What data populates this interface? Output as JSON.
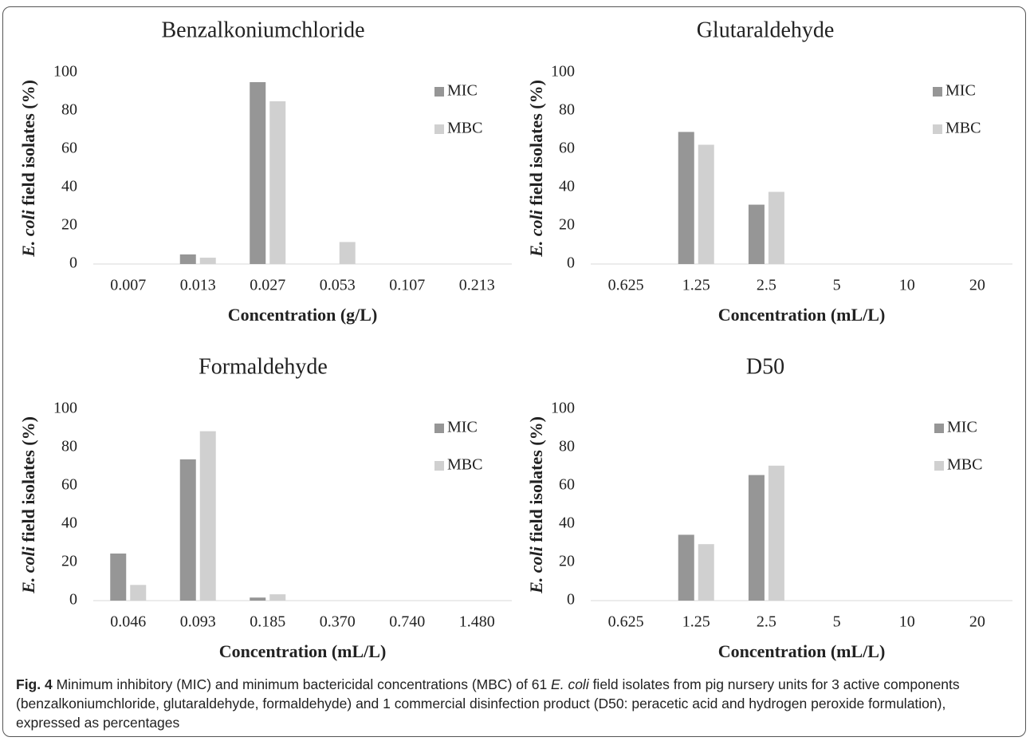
{
  "chart_data": [
    {
      "type": "bar",
      "title": "Benzalkoniumchloride",
      "xlabel": "Concentration (g/L)",
      "ylabel": [
        "E. coli",
        " field isolates (%)"
      ],
      "categories": [
        "0.007",
        "0.013",
        "0.027",
        "0.053",
        "0.107",
        "0.213"
      ],
      "series": [
        {
          "name": "MIC",
          "color": "#969696",
          "values": [
            0,
            5,
            95,
            0,
            0,
            0
          ]
        },
        {
          "name": "MBC",
          "color": "#d0d0d0",
          "values": [
            0,
            3.3,
            85,
            11.5,
            0,
            0
          ]
        }
      ],
      "ylim": [
        0,
        100
      ],
      "yticks": [
        0,
        20,
        40,
        60,
        80,
        100
      ],
      "grid": false,
      "legend": "upper right"
    },
    {
      "type": "bar",
      "title": "Glutaraldehyde",
      "xlabel": "Concentration (mL/L)",
      "ylabel": [
        "E. coli",
        " field isolates (%)"
      ],
      "categories": [
        "0.625",
        "1.25",
        "2.5",
        "5",
        "10",
        "20"
      ],
      "series": [
        {
          "name": "MIC",
          "color": "#969696",
          "values": [
            0,
            69,
            31,
            0,
            0,
            0
          ]
        },
        {
          "name": "MBC",
          "color": "#d0d0d0",
          "values": [
            0,
            62.3,
            37.7,
            0,
            0,
            0
          ]
        }
      ],
      "ylim": [
        0,
        100
      ],
      "yticks": [
        0,
        20,
        40,
        60,
        80,
        100
      ],
      "grid": false,
      "legend": "upper right"
    },
    {
      "type": "bar",
      "title": "Formaldehyde",
      "xlabel": "Concentration (mL/L)",
      "ylabel": [
        "E. coli",
        " field isolates (%)"
      ],
      "categories": [
        "0.046",
        "0.093",
        "0.185",
        "0.370",
        "0.740",
        "1.480"
      ],
      "series": [
        {
          "name": "MIC",
          "color": "#969696",
          "values": [
            24.6,
            73.8,
            1.6,
            0,
            0,
            0
          ]
        },
        {
          "name": "MBC",
          "color": "#d0d0d0",
          "values": [
            8.2,
            88.5,
            3.3,
            0,
            0,
            0
          ]
        }
      ],
      "ylim": [
        0,
        100
      ],
      "yticks": [
        0,
        20,
        40,
        60,
        80,
        100
      ],
      "grid": false,
      "legend": "upper right"
    },
    {
      "type": "bar",
      "title": "D50",
      "xlabel": "Concentration (mL/L)",
      "ylabel": [
        "E. coli",
        " field isolates (%)"
      ],
      "categories": [
        "0.625",
        "1.25",
        "2.5",
        "5",
        "10",
        "20"
      ],
      "series": [
        {
          "name": "MIC",
          "color": "#969696",
          "values": [
            0,
            34.4,
            65.6,
            0,
            0,
            0
          ]
        },
        {
          "name": "MBC",
          "color": "#d0d0d0",
          "values": [
            0,
            29.5,
            70.5,
            0,
            0,
            0
          ]
        }
      ],
      "ylim": [
        0,
        100
      ],
      "yticks": [
        0,
        20,
        40,
        60,
        80,
        100
      ],
      "grid": false,
      "legend": "upper right"
    }
  ],
  "caption": {
    "label": "Fig. 4",
    "text": [
      " Minimum inhibitory (MIC) and minimum bactericidal concentrations (MBC) of 61 ",
      "E. coli",
      " field isolates from pig nursery units for 3 active components (benzalkoniumchloride, glutaraldehyde, formaldehyde) and 1 commercial disinfection product (D50: peracetic acid and hydrogen peroxide formulation), expressed as percentages"
    ]
  }
}
